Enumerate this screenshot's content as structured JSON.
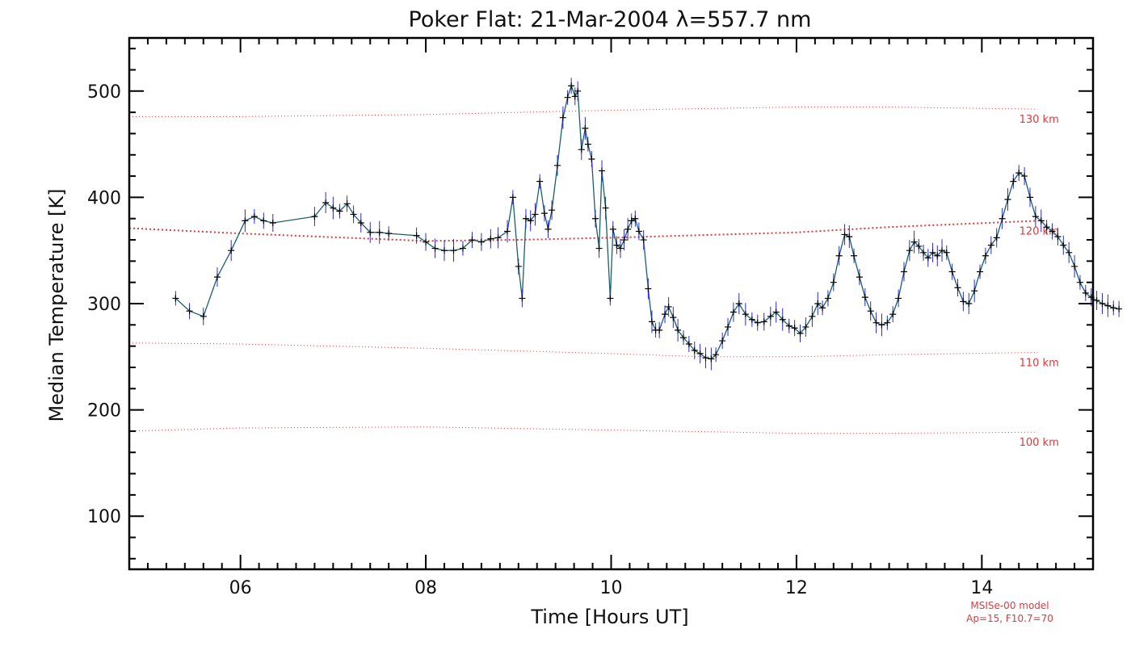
{
  "chart_data": {
    "type": "line",
    "title": "Poker Flat: 21-Mar-2004 λ=557.7 nm",
    "xlabel": "Time [Hours UT]",
    "ylabel": "Median Temperature [K]",
    "xlim": [
      4.8,
      15.2
    ],
    "ylim": [
      50,
      550
    ],
    "x_ticks": [
      6,
      8,
      10,
      12,
      14
    ],
    "x_tick_labels": [
      "06",
      "08",
      "10",
      "12",
      "14"
    ],
    "y_ticks": [
      100,
      200,
      300,
      400,
      500
    ],
    "y_tick_labels": [
      "100",
      "200",
      "300",
      "400",
      "500"
    ],
    "series": [
      {
        "name": "Median Temperature",
        "color": "#1a1a6b",
        "errorbar_color": "#2a2ad8",
        "marker": "plus",
        "points": [
          [
            5.3,
            305
          ],
          [
            5.45,
            293
          ],
          [
            5.6,
            288
          ],
          [
            5.75,
            325
          ],
          [
            5.9,
            350
          ],
          [
            6.05,
            378
          ],
          [
            6.15,
            382
          ],
          [
            6.25,
            378
          ],
          [
            6.35,
            376
          ],
          [
            6.8,
            382
          ],
          [
            6.92,
            395
          ],
          [
            7.0,
            390
          ],
          [
            7.07,
            387
          ],
          [
            7.15,
            394
          ],
          [
            7.22,
            384
          ],
          [
            7.3,
            376
          ],
          [
            7.4,
            367
          ],
          [
            7.5,
            367
          ],
          [
            7.6,
            366
          ],
          [
            7.9,
            364
          ],
          [
            8.0,
            358
          ],
          [
            8.1,
            352
          ],
          [
            8.2,
            350
          ],
          [
            8.3,
            350
          ],
          [
            8.4,
            352
          ],
          [
            8.5,
            360
          ],
          [
            8.6,
            358
          ],
          [
            8.7,
            361
          ],
          [
            8.78,
            362
          ],
          [
            8.88,
            368
          ],
          [
            8.94,
            400
          ],
          [
            9.0,
            335
          ],
          [
            9.04,
            305
          ],
          [
            9.08,
            380
          ],
          [
            9.13,
            378
          ],
          [
            9.18,
            384
          ],
          [
            9.23,
            415
          ],
          [
            9.28,
            385
          ],
          [
            9.32,
            370
          ],
          [
            9.36,
            388
          ],
          [
            9.42,
            430
          ],
          [
            9.48,
            475
          ],
          [
            9.53,
            494
          ],
          [
            9.57,
            505
          ],
          [
            9.61,
            495
          ],
          [
            9.64,
            500
          ],
          [
            9.68,
            445
          ],
          [
            9.72,
            465
          ],
          [
            9.75,
            450
          ],
          [
            9.79,
            436
          ],
          [
            9.83,
            380
          ],
          [
            9.87,
            352
          ],
          [
            9.9,
            425
          ],
          [
            9.94,
            390
          ],
          [
            9.99,
            305
          ],
          [
            10.02,
            370
          ],
          [
            10.06,
            355
          ],
          [
            10.1,
            352
          ],
          [
            10.14,
            360
          ],
          [
            10.18,
            370
          ],
          [
            10.22,
            378
          ],
          [
            10.26,
            380
          ],
          [
            10.3,
            368
          ],
          [
            10.35,
            360
          ],
          [
            10.4,
            314
          ],
          [
            10.44,
            283
          ],
          [
            10.48,
            275
          ],
          [
            10.52,
            275
          ],
          [
            10.58,
            290
          ],
          [
            10.62,
            297
          ],
          [
            10.67,
            287
          ],
          [
            10.72,
            275
          ],
          [
            10.78,
            268
          ],
          [
            10.84,
            262
          ],
          [
            10.9,
            256
          ],
          [
            10.96,
            253
          ],
          [
            11.02,
            249
          ],
          [
            11.08,
            248
          ],
          [
            11.13,
            252
          ],
          [
            11.2,
            265
          ],
          [
            11.26,
            278
          ],
          [
            11.32,
            292
          ],
          [
            11.38,
            300
          ],
          [
            11.45,
            290
          ],
          [
            11.52,
            285
          ],
          [
            11.58,
            282
          ],
          [
            11.65,
            283
          ],
          [
            11.72,
            288
          ],
          [
            11.78,
            292
          ],
          [
            11.85,
            285
          ],
          [
            11.92,
            279
          ],
          [
            11.98,
            277
          ],
          [
            12.04,
            272
          ],
          [
            12.1,
            278
          ],
          [
            12.17,
            288
          ],
          [
            12.23,
            300
          ],
          [
            12.28,
            296
          ],
          [
            12.34,
            305
          ],
          [
            12.4,
            320
          ],
          [
            12.46,
            345
          ],
          [
            12.52,
            365
          ],
          [
            12.57,
            363
          ],
          [
            12.62,
            345
          ],
          [
            12.68,
            325
          ],
          [
            12.74,
            306
          ],
          [
            12.8,
            293
          ],
          [
            12.86,
            282
          ],
          [
            12.92,
            280
          ],
          [
            12.98,
            282
          ],
          [
            13.04,
            290
          ],
          [
            13.1,
            305
          ],
          [
            13.16,
            330
          ],
          [
            13.22,
            350
          ],
          [
            13.27,
            358
          ],
          [
            13.32,
            354
          ],
          [
            13.37,
            348
          ],
          [
            13.42,
            343
          ],
          [
            13.47,
            348
          ],
          [
            13.52,
            345
          ],
          [
            13.57,
            350
          ],
          [
            13.62,
            348
          ],
          [
            13.68,
            330
          ],
          [
            13.74,
            315
          ],
          [
            13.8,
            302
          ],
          [
            13.86,
            300
          ],
          [
            13.92,
            312
          ],
          [
            13.98,
            330
          ],
          [
            14.04,
            345
          ],
          [
            14.1,
            355
          ],
          [
            14.16,
            362
          ],
          [
            14.22,
            380
          ],
          [
            14.28,
            398
          ],
          [
            14.34,
            415
          ],
          [
            14.4,
            423
          ],
          [
            14.46,
            420
          ],
          [
            14.52,
            400
          ],
          [
            14.58,
            382
          ],
          [
            14.64,
            378
          ],
          [
            14.7,
            372
          ],
          [
            14.76,
            368
          ],
          [
            14.82,
            363
          ],
          [
            14.88,
            355
          ],
          [
            14.94,
            348
          ],
          [
            15.0,
            335
          ],
          [
            15.06,
            320
          ],
          [
            15.12,
            310
          ],
          [
            15.18,
            306
          ],
          [
            15.24,
            303
          ],
          [
            15.3,
            300
          ],
          [
            15.36,
            298
          ],
          [
            15.42,
            296
          ],
          [
            15.48,
            295
          ]
        ]
      }
    ],
    "model_reference_lines": [
      {
        "label": "130 km",
        "color": "#e0393e",
        "points": [
          [
            4.8,
            476
          ],
          [
            6.0,
            476
          ],
          [
            8.0,
            478
          ],
          [
            10.0,
            482
          ],
          [
            12.0,
            485
          ],
          [
            13.0,
            485
          ],
          [
            14.6,
            483
          ]
        ]
      },
      {
        "label": "120 km",
        "color": "#e0393e",
        "points": [
          [
            4.8,
            371
          ],
          [
            6.0,
            366
          ],
          [
            8.0,
            359
          ],
          [
            9.0,
            360
          ],
          [
            10.0,
            362
          ],
          [
            12.0,
            367
          ],
          [
            13.0,
            372
          ],
          [
            14.6,
            378
          ]
        ]
      },
      {
        "label": "110 km",
        "color": "#e0393e",
        "points": [
          [
            4.8,
            263
          ],
          [
            6.0,
            262
          ],
          [
            8.0,
            258
          ],
          [
            10.0,
            253
          ],
          [
            11.0,
            250
          ],
          [
            12.0,
            250
          ],
          [
            13.0,
            252
          ],
          [
            14.6,
            254
          ]
        ]
      },
      {
        "label": "100 km",
        "color": "#e0393e",
        "points": [
          [
            4.8,
            180
          ],
          [
            6.0,
            183
          ],
          [
            8.0,
            184
          ],
          [
            10.0,
            181
          ],
          [
            12.0,
            178
          ],
          [
            13.0,
            178
          ],
          [
            14.6,
            179
          ]
        ]
      }
    ],
    "model_note_line1": "MSISe-00 model",
    "model_note_line2": "Ap=15, F10.7=70"
  }
}
